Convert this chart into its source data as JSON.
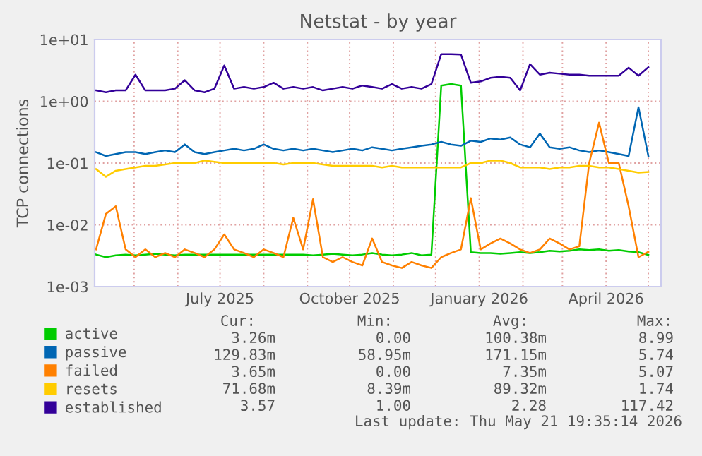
{
  "chart_data": {
    "type": "line",
    "title": "Netstat - by year",
    "ylabel": "TCP connections",
    "x": [
      "2025-04-04",
      "2025-04-11",
      "2025-04-18",
      "2025-04-25",
      "2025-05-02",
      "2025-05-09",
      "2025-05-16",
      "2025-05-23",
      "2025-05-30",
      "2025-06-06",
      "2025-06-13",
      "2025-06-20",
      "2025-06-27",
      "2025-07-04",
      "2025-07-11",
      "2025-07-18",
      "2025-07-25",
      "2025-08-01",
      "2025-08-08",
      "2025-08-15",
      "2025-08-22",
      "2025-08-29",
      "2025-09-05",
      "2025-09-12",
      "2025-09-19",
      "2025-09-26",
      "2025-10-03",
      "2025-10-10",
      "2025-10-17",
      "2025-10-24",
      "2025-10-31",
      "2025-11-07",
      "2025-11-14",
      "2025-11-21",
      "2025-11-28",
      "2025-12-05",
      "2025-12-12",
      "2025-12-19",
      "2025-12-26",
      "2026-01-02",
      "2026-01-09",
      "2026-01-16",
      "2026-01-23",
      "2026-01-30",
      "2026-02-06",
      "2026-02-13",
      "2026-02-20",
      "2026-02-27",
      "2026-03-06",
      "2026-03-13",
      "2026-03-20",
      "2026-03-27",
      "2026-04-03",
      "2026-04-10",
      "2026-04-17",
      "2026-04-24",
      "2026-05-01"
    ],
    "series": [
      {
        "name": "active",
        "color": "#00cc00",
        "values": [
          0.0033,
          0.003,
          0.0032,
          0.0033,
          0.0032,
          0.0033,
          0.0034,
          0.0033,
          0.0032,
          0.0033,
          0.0033,
          0.0033,
          0.0033,
          0.0033,
          0.0033,
          0.0033,
          0.0033,
          0.0033,
          0.0033,
          0.0033,
          0.0033,
          0.0033,
          0.0032,
          0.0033,
          0.0034,
          0.0033,
          0.0032,
          0.0033,
          0.0035,
          0.0033,
          0.0032,
          0.0033,
          0.0035,
          0.0032,
          0.0033,
          1.8,
          1.9,
          1.8,
          0.0036,
          0.0035,
          0.0035,
          0.0034,
          0.0035,
          0.0036,
          0.0035,
          0.0036,
          0.0038,
          0.0037,
          0.0038,
          0.004,
          0.0039,
          0.004,
          0.0038,
          0.0039,
          0.0037,
          0.0036,
          0.00326
        ]
      },
      {
        "name": "passive",
        "color": "#0066b3",
        "values": [
          0.15,
          0.13,
          0.14,
          0.15,
          0.15,
          0.14,
          0.15,
          0.16,
          0.15,
          0.2,
          0.15,
          0.14,
          0.15,
          0.16,
          0.17,
          0.16,
          0.17,
          0.2,
          0.17,
          0.16,
          0.17,
          0.16,
          0.17,
          0.16,
          0.15,
          0.16,
          0.17,
          0.16,
          0.18,
          0.17,
          0.16,
          0.17,
          0.18,
          0.19,
          0.2,
          0.22,
          0.2,
          0.19,
          0.23,
          0.22,
          0.25,
          0.24,
          0.26,
          0.2,
          0.18,
          0.3,
          0.18,
          0.17,
          0.18,
          0.16,
          0.15,
          0.16,
          0.15,
          0.14,
          0.13,
          0.8,
          0.13
        ]
      },
      {
        "name": "failed",
        "color": "#ff8000",
        "values": [
          0.004,
          0.015,
          0.02,
          0.004,
          0.003,
          0.004,
          0.003,
          0.0035,
          0.003,
          0.004,
          0.0035,
          0.003,
          0.004,
          0.007,
          0.004,
          0.0035,
          0.003,
          0.004,
          0.0035,
          0.003,
          0.013,
          0.004,
          0.026,
          0.003,
          0.0025,
          0.003,
          0.0025,
          0.0022,
          0.006,
          0.0025,
          0.0022,
          0.002,
          0.0025,
          0.0022,
          0.002,
          0.003,
          0.0035,
          0.004,
          0.027,
          0.004,
          0.005,
          0.006,
          0.005,
          0.004,
          0.0035,
          0.004,
          0.006,
          0.005,
          0.004,
          0.0045,
          0.1,
          0.45,
          0.1,
          0.1,
          0.02,
          0.003,
          0.00365
        ]
      },
      {
        "name": "resets",
        "color": "#ffcc00",
        "values": [
          0.08,
          0.06,
          0.075,
          0.08,
          0.085,
          0.09,
          0.09,
          0.095,
          0.1,
          0.1,
          0.1,
          0.11,
          0.105,
          0.1,
          0.1,
          0.1,
          0.1,
          0.1,
          0.1,
          0.095,
          0.1,
          0.1,
          0.1,
          0.095,
          0.09,
          0.09,
          0.09,
          0.09,
          0.09,
          0.085,
          0.09,
          0.085,
          0.085,
          0.085,
          0.085,
          0.085,
          0.085,
          0.085,
          0.1,
          0.1,
          0.11,
          0.11,
          0.1,
          0.085,
          0.085,
          0.085,
          0.08,
          0.085,
          0.085,
          0.09,
          0.09,
          0.085,
          0.085,
          0.08,
          0.075,
          0.07,
          0.0717
        ]
      },
      {
        "name": "established",
        "color": "#330099",
        "values": [
          1.5,
          1.4,
          1.5,
          1.5,
          2.7,
          1.5,
          1.5,
          1.5,
          1.6,
          2.2,
          1.5,
          1.4,
          1.6,
          3.8,
          1.6,
          1.7,
          1.6,
          1.7,
          2.0,
          1.6,
          1.7,
          1.6,
          1.7,
          1.5,
          1.6,
          1.7,
          1.6,
          1.8,
          1.7,
          1.6,
          1.9,
          1.6,
          1.7,
          1.6,
          1.9,
          5.8,
          5.8,
          5.7,
          2.0,
          2.1,
          2.4,
          2.5,
          2.4,
          1.5,
          4.0,
          2.7,
          2.9,
          2.8,
          2.7,
          2.7,
          2.6,
          2.6,
          2.6,
          2.6,
          3.5,
          2.6,
          3.57
        ]
      }
    ],
    "log": "y",
    "ylim": [
      0.001,
      10
    ],
    "yticks": [
      {
        "value": 0.001,
        "label": "1e-03"
      },
      {
        "value": 0.01,
        "label": "1e-02"
      },
      {
        "value": 0.1,
        "label": "1e-01"
      },
      {
        "value": 1,
        "label": "1e+00"
      },
      {
        "value": 10,
        "label": "1e+01"
      }
    ],
    "xlim": [
      "2025-04-03",
      "2026-05-10"
    ],
    "xticks": [
      {
        "value": "2025-05-01",
        "label": null
      },
      {
        "value": "2025-06-01",
        "label": null
      },
      {
        "value": "2025-07-01",
        "label": "July 2025"
      },
      {
        "value": "2025-08-01",
        "label": null
      },
      {
        "value": "2025-09-01",
        "label": null
      },
      {
        "value": "2025-10-01",
        "label": "October 2025"
      },
      {
        "value": "2025-11-01",
        "label": null
      },
      {
        "value": "2025-12-01",
        "label": null
      },
      {
        "value": "2026-01-01",
        "label": "January 2026"
      },
      {
        "value": "2026-02-01",
        "label": null
      },
      {
        "value": "2026-03-01",
        "label": null
      },
      {
        "value": "2026-04-01",
        "label": "April 2026"
      },
      {
        "value": "2026-05-01",
        "label": null
      }
    ],
    "grid": true,
    "legend": "bottom left",
    "line_style": "solid",
    "marker": "none",
    "annotations": [
      "Cur:",
      "Min:",
      "Avg:",
      "Max:",
      "3.26m",
      "0.00",
      "100.38m",
      "8.99",
      "129.83m",
      "58.95m",
      "171.15m",
      "5.74",
      "3.65m",
      "0.00",
      "7.35m",
      "5.07",
      "71.68m",
      "8.39m",
      "89.32m",
      "1.74",
      "3.57",
      "1.00",
      "2.28",
      "117.42",
      "Last update: Thu May 21 19:35:14 2026"
    ]
  }
}
